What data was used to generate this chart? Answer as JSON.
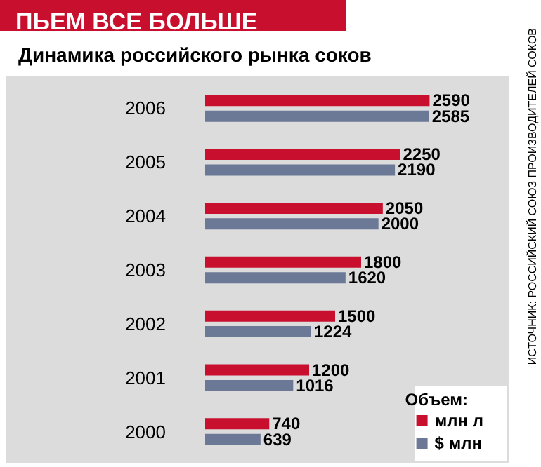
{
  "chart_data": {
    "type": "bar",
    "orientation": "horizontal",
    "title": "ПЬЕМ ВСЕ БОЛЬШЕ",
    "subtitle": "Динамика российского рынка соков",
    "categories": [
      "2006",
      "2005",
      "2004",
      "2003",
      "2002",
      "2001",
      "2000"
    ],
    "series": [
      {
        "name": "млн л",
        "color": "#c8102e",
        "values": [
          2590,
          2250,
          2050,
          1800,
          1500,
          1200,
          740
        ]
      },
      {
        "name": "$ млн",
        "color": "#6b7896",
        "values": [
          2585,
          2190,
          2000,
          1620,
          1224,
          1016,
          639
        ]
      }
    ],
    "data_labels": true,
    "legend": "bottom right",
    "legend_title": "Объем:",
    "annotations": [
      "ИСТОЧНИК: РОССИЙСКИЙ СОЮЗ ПРОИЗВОДИТЕЛЕЙ СОКОВ"
    ]
  }
}
